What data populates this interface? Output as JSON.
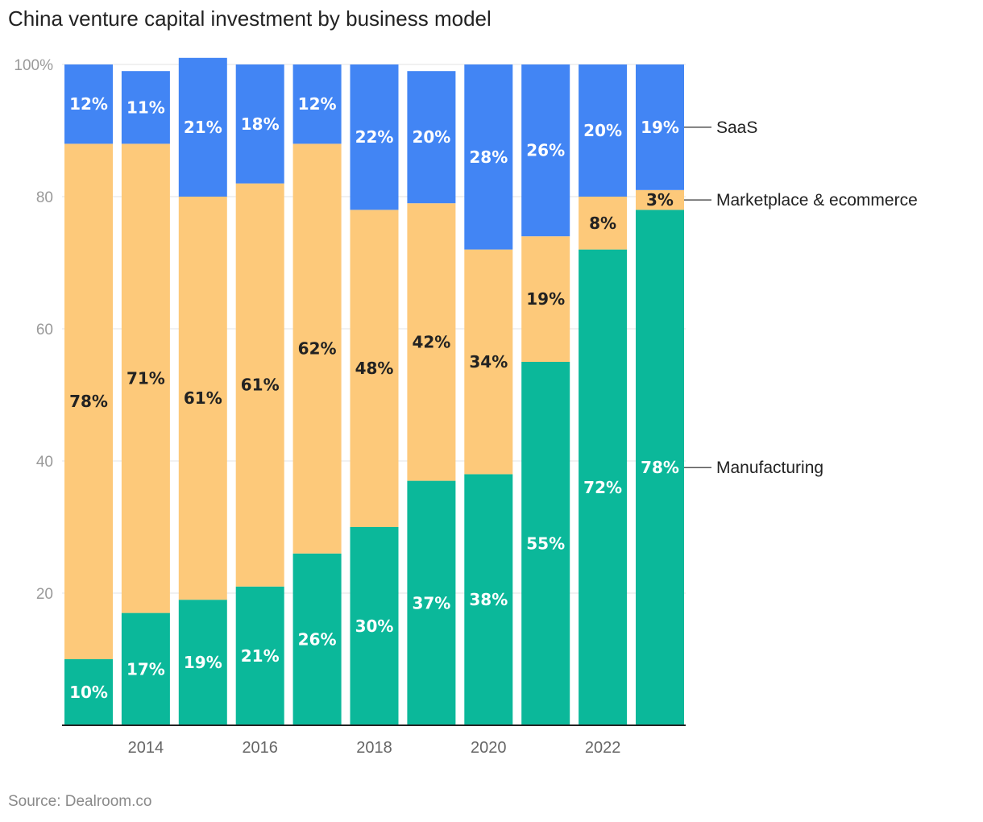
{
  "chart_data": {
    "type": "bar",
    "stacked": true,
    "title": "China venture capital investment by business model",
    "source": "Source: Dealroom.co",
    "years": [
      2013,
      2014,
      2015,
      2016,
      2017,
      2018,
      2019,
      2020,
      2021,
      2022,
      2023
    ],
    "x_tick_labels": [
      "",
      "2014",
      "",
      "2016",
      "",
      "2018",
      "",
      "2020",
      "",
      "2022",
      ""
    ],
    "y_ticks": [
      "100%",
      "80",
      "60",
      "40",
      "20"
    ],
    "y_tick_values": [
      100,
      80,
      60,
      40,
      20
    ],
    "ylim": [
      0,
      100
    ],
    "grid": true,
    "legend": "direct labels at right",
    "series": [
      {
        "name": "Manufacturing",
        "color": "#0bb89a",
        "label_color": "#ffffff",
        "values": [
          10,
          17,
          19,
          21,
          26,
          30,
          37,
          38,
          55,
          72,
          78
        ],
        "labels": [
          "10%",
          "17%",
          "19%",
          "21%",
          "26%",
          "30%",
          "37%",
          "38%",
          "55%",
          "72%",
          "78%"
        ]
      },
      {
        "name": "Marketplace & ecommerce",
        "color": "#fdc97a",
        "label_color": "#222222",
        "values": [
          78,
          71,
          61,
          61,
          62,
          48,
          42,
          34,
          19,
          8,
          3
        ],
        "labels": [
          "78%",
          "71%",
          "61%",
          "61%",
          "62%",
          "48%",
          "42%",
          "34%",
          "19%",
          "8%",
          "3%"
        ]
      },
      {
        "name": "SaaS",
        "color": "#4285f4",
        "label_color": "#ffffff",
        "values": [
          12,
          11,
          21,
          18,
          12,
          22,
          20,
          28,
          26,
          20,
          19
        ],
        "labels": [
          "12%",
          "11%",
          "21%",
          "18%",
          "12%",
          "22%",
          "20%",
          "28%",
          "26%",
          "20%",
          "19%"
        ]
      }
    ]
  }
}
